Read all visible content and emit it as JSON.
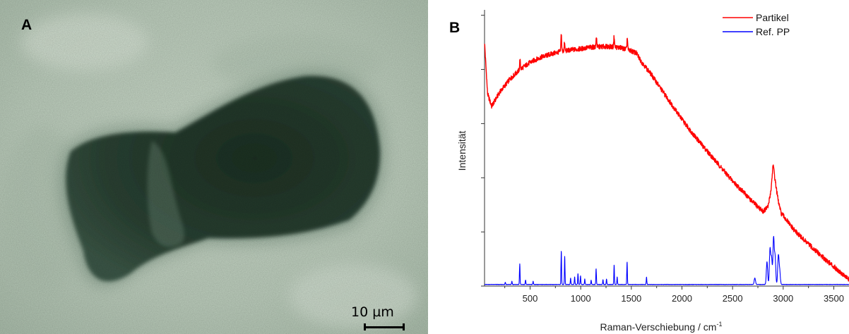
{
  "panel_a": {
    "letter": "A",
    "scalebar": "10 µm"
  },
  "panel_b": {
    "letter": "B"
  },
  "chart_data": {
    "type": "line",
    "xlabel": "Raman-Verschiebung / cm",
    "xlabel_superscript": "-1",
    "ylabel": "Intensität",
    "xlim": [
      50,
      3650
    ],
    "x_ticks": [
      500,
      1000,
      1500,
      2000,
      2500,
      3000,
      3500
    ],
    "x_tick_labels": [
      "500",
      "1000",
      "1500",
      "2000",
      "2500",
      "3000",
      "3500"
    ],
    "y_ticks": [
      0,
      1,
      2,
      3,
      4,
      5
    ],
    "y_tick_labels": [],
    "ylim": [
      0,
      5.1
    ],
    "grid": false,
    "legend_position": "top-right",
    "series": [
      {
        "name": "Partikel",
        "color": "#ff0000",
        "x": [
          50,
          80,
          120,
          160,
          200,
          300,
          400,
          500,
          600,
          700,
          800,
          900,
          1000,
          1100,
          1200,
          1300,
          1400,
          1500,
          1550,
          1600,
          1700,
          1800,
          1900,
          2000,
          2100,
          2200,
          2300,
          2400,
          2500,
          2600,
          2700,
          2800,
          2850,
          2880,
          2900,
          2920,
          2950,
          2980,
          3000,
          3100,
          3200,
          3300,
          3400,
          3500,
          3600,
          3650
        ],
        "values": [
          4.5,
          3.55,
          3.32,
          3.45,
          3.58,
          3.82,
          4.0,
          4.13,
          4.22,
          4.28,
          4.33,
          4.36,
          4.38,
          4.41,
          4.42,
          4.42,
          4.4,
          4.34,
          4.3,
          4.14,
          3.9,
          3.62,
          3.35,
          3.08,
          2.83,
          2.6,
          2.38,
          2.16,
          1.94,
          1.75,
          1.55,
          1.38,
          1.46,
          1.78,
          2.25,
          1.96,
          1.58,
          1.34,
          1.3,
          1.05,
          0.86,
          0.69,
          0.52,
          0.36,
          0.2,
          0.12
        ],
        "peaks": [
          {
            "x": 400,
            "h": 0.18
          },
          {
            "x": 808,
            "h": 0.34
          },
          {
            "x": 840,
            "h": 0.14
          },
          {
            "x": 1155,
            "h": 0.2
          },
          {
            "x": 1330,
            "h": 0.2
          },
          {
            "x": 1460,
            "h": 0.22
          }
        ]
      },
      {
        "name": "Ref. PP",
        "color": "#0000ff",
        "x": [
          50,
          3650
        ],
        "values": [
          0.03,
          0.03
        ],
        "peaks": [
          {
            "x": 255,
            "h": 0.04
          },
          {
            "x": 320,
            "h": 0.06
          },
          {
            "x": 398,
            "h": 0.38
          },
          {
            "x": 455,
            "h": 0.08
          },
          {
            "x": 530,
            "h": 0.06
          },
          {
            "x": 808,
            "h": 0.62
          },
          {
            "x": 842,
            "h": 0.52
          },
          {
            "x": 900,
            "h": 0.12
          },
          {
            "x": 940,
            "h": 0.14
          },
          {
            "x": 973,
            "h": 0.2
          },
          {
            "x": 998,
            "h": 0.16
          },
          {
            "x": 1040,
            "h": 0.1
          },
          {
            "x": 1103,
            "h": 0.08
          },
          {
            "x": 1152,
            "h": 0.29
          },
          {
            "x": 1220,
            "h": 0.09
          },
          {
            "x": 1255,
            "h": 0.1
          },
          {
            "x": 1330,
            "h": 0.36
          },
          {
            "x": 1360,
            "h": 0.14
          },
          {
            "x": 1458,
            "h": 0.42
          },
          {
            "x": 1650,
            "h": 0.14
          },
          {
            "x": 2720,
            "h": 0.12
          },
          {
            "x": 2840,
            "h": 0.42
          },
          {
            "x": 2870,
            "h": 0.65
          },
          {
            "x": 2885,
            "h": 0.48
          },
          {
            "x": 2905,
            "h": 0.85
          },
          {
            "x": 2920,
            "h": 0.5
          },
          {
            "x": 2952,
            "h": 0.52
          },
          {
            "x": 2965,
            "h": 0.25
          }
        ]
      }
    ]
  },
  "colors": {
    "micro_bg": "#c3d3c3",
    "particle_dark": "#1f3528",
    "particle_mid": "#36503f"
  }
}
